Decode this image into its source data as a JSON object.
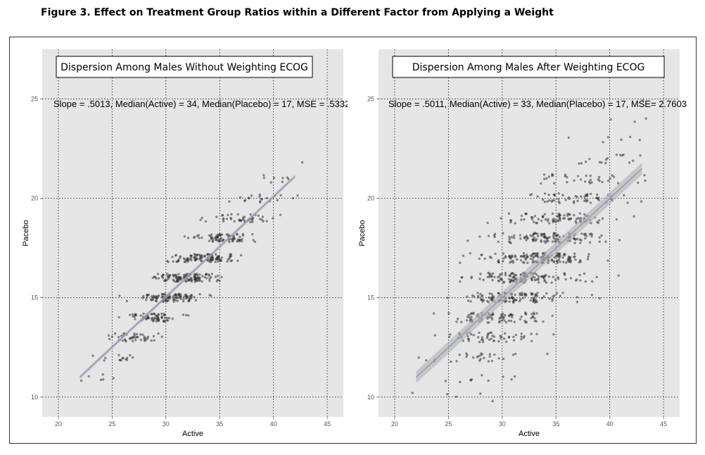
{
  "figure_title": "Figure 3. Effect on Treatment Group Ratios within a Different Factor from Applying a Weight",
  "colors": {
    "panel_bg": "#e6e6e6",
    "grid": "#111111",
    "points": "#333333",
    "fit_line": "#8a93c9",
    "band": "#b0b0b0"
  },
  "chart_data": [
    {
      "type": "scatter",
      "title": "Dispersion Among Males Without Weighting ECOG",
      "annotation": "Slope = .5013, Median(Active) = 34, Median(Placebo) = 17, MSE = .5332",
      "xlabel": "Active",
      "ylabel": "Pacebo",
      "xlim": [
        18.5,
        46.5
      ],
      "ylim": [
        9,
        27.5
      ],
      "xticks": [
        20,
        25,
        30,
        35,
        40,
        45
      ],
      "yticks": [
        10,
        15,
        20,
        25
      ],
      "grid": true,
      "fit": {
        "x": [
          22,
          42
        ],
        "y": [
          11.0,
          21.1
        ],
        "band": 0.1
      },
      "points_model": {
        "count": 650,
        "x_center": 32.3,
        "x_sd": 3.6,
        "x_min": 22,
        "x_max": 42.5,
        "slope": 0.5013,
        "intercept": -0.03,
        "noise_sd": 0.73,
        "y_jitter": 0.2,
        "seed": 11
      }
    },
    {
      "type": "scatter",
      "title": "Dispersion Among Males After Weighting ECOG",
      "annotation": "Slope = .5011,  Median(Active) = 33, Median(Placebo) = 17, MSE= 2.7603",
      "xlabel": "Active",
      "ylabel": "Pacebo",
      "xlim": [
        18.5,
        46.5
      ],
      "ylim": [
        9,
        27.5
      ],
      "xticks": [
        20,
        25,
        30,
        35,
        40,
        45
      ],
      "yticks": [
        10,
        15,
        20,
        25
      ],
      "grid": true,
      "fit": {
        "x": [
          22,
          43
        ],
        "y": [
          11.0,
          21.5
        ],
        "band": 0.3
      },
      "points_model": {
        "count": 900,
        "x_center": 32.8,
        "x_sd": 3.9,
        "x_min": 22,
        "x_max": 43,
        "slope": 0.5011,
        "intercept": 0.1,
        "noise_sd": 1.66,
        "y_jitter": 0.25,
        "seed": 29
      }
    }
  ]
}
